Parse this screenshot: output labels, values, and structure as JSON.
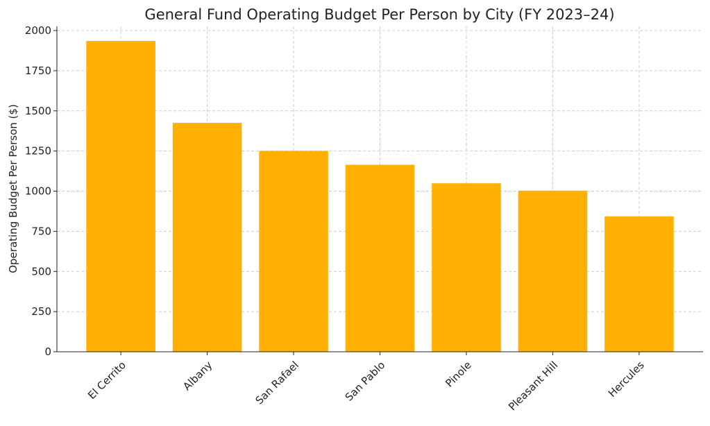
{
  "chart_data": {
    "type": "bar",
    "title": "General Fund Operating Budget Per Person by City (FY 2023–24)",
    "xlabel": "",
    "ylabel": "Operating Budget Per Person ($)",
    "categories": [
      "El Cerrito",
      "Albany",
      "San Rafael",
      "San Pablo",
      "Pinole",
      "Pleasant Hill",
      "Hercules"
    ],
    "values": [
      1935,
      1425,
      1250,
      1164,
      1049,
      1003,
      843
    ],
    "ylim": [
      0,
      2026
    ],
    "yticks": [
      0,
      250,
      500,
      750,
      1000,
      1250,
      1500,
      1750,
      2000
    ],
    "grid": true,
    "bar_color": "#FFB000"
  }
}
